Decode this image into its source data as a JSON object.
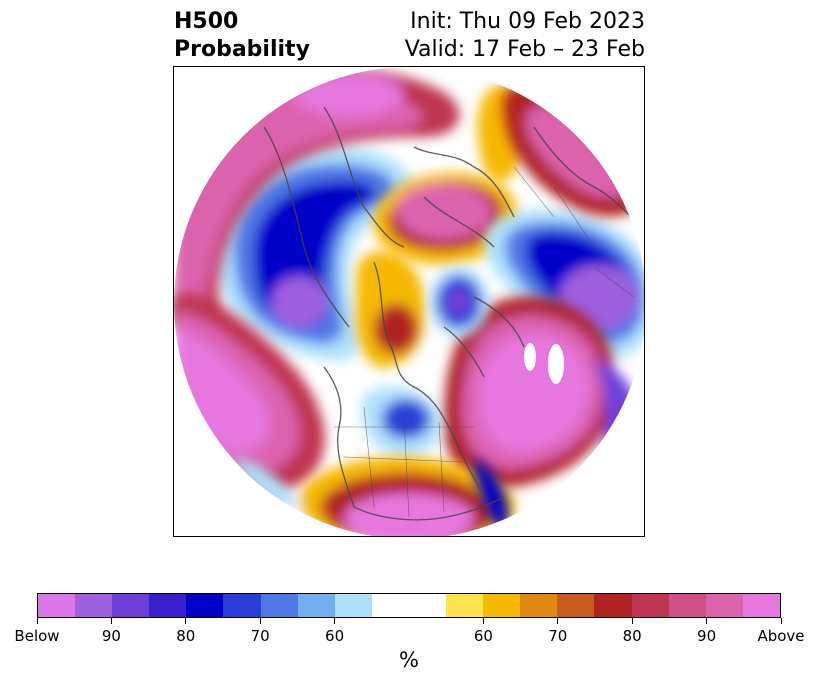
{
  "title": {
    "line1": "H500",
    "line2": "Probability",
    "init": "Init: Thu 09 Feb 2023",
    "valid": "Valid: 17 Feb – 23 Feb"
  },
  "colorbar": {
    "unit": "%",
    "colors": [
      "#dd77e6",
      "#9e5fdf",
      "#6f3fd9",
      "#3a1fcf",
      "#0000c8",
      "#2a3fd8",
      "#4f78e6",
      "#74aef0",
      "#aee0fb",
      "#ffffff",
      "#ffffff",
      "#fde34d",
      "#f5b800",
      "#e08910",
      "#c85a1a",
      "#b02424",
      "#c0354f",
      "#cf4f86",
      "#db62ad",
      "#e677de"
    ],
    "tick_labels": [
      "Below",
      "90",
      "80",
      "70",
      "60",
      "60",
      "70",
      "80",
      "90",
      "Above"
    ]
  },
  "map": {
    "projection": "north polar stereographic",
    "features": [
      {
        "name": "west-atlantic-below-anomaly",
        "category": "Below",
        "level": "90"
      },
      {
        "name": "north-atlantic-above-anomaly",
        "category": "Above",
        "level": "90"
      },
      {
        "name": "pacific-above-anomaly",
        "category": "Above",
        "level": "90"
      },
      {
        "name": "east-asia-below-anomaly",
        "category": "Below",
        "level": "90"
      },
      {
        "name": "north-america-above-anomaly",
        "category": "Above",
        "level": "90"
      },
      {
        "name": "bering-below-anomaly",
        "category": "Below",
        "level": "80"
      },
      {
        "name": "arctic-canada-below-anomaly",
        "category": "Below",
        "level": "70"
      }
    ]
  }
}
